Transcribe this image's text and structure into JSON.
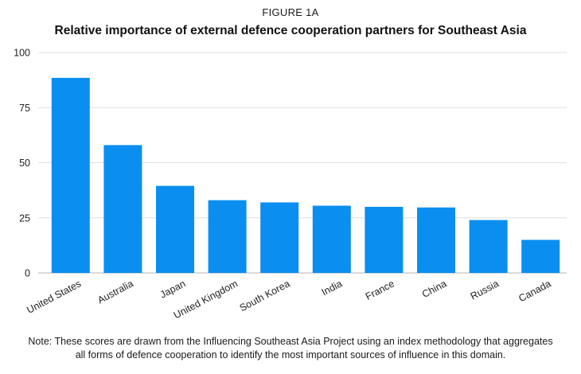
{
  "figure_label": "FIGURE 1A",
  "chart_data": {
    "type": "bar",
    "title": "Relative importance of external defence cooperation partners for Southeast Asia",
    "xlabel": "",
    "ylabel": "",
    "ylim": [
      0,
      100
    ],
    "yticks": [
      0,
      25,
      50,
      75,
      100
    ],
    "grid": true,
    "bar_color": "#0a8ef0",
    "categories": [
      "United States",
      "Australia",
      "Japan",
      "United Kingdom",
      "South Korea",
      "India",
      "France",
      "China",
      "Russia",
      "Canada"
    ],
    "values": [
      88.5,
      58,
      39.5,
      33,
      32,
      30.5,
      30,
      29.7,
      24,
      15
    ]
  },
  "note": {
    "line1": "Note: These scores are drawn from the Influencing Southeast Asia Project using an index methodology that aggregates",
    "line2": "all forms of defence cooperation to identify the most important sources of influence in this domain."
  }
}
